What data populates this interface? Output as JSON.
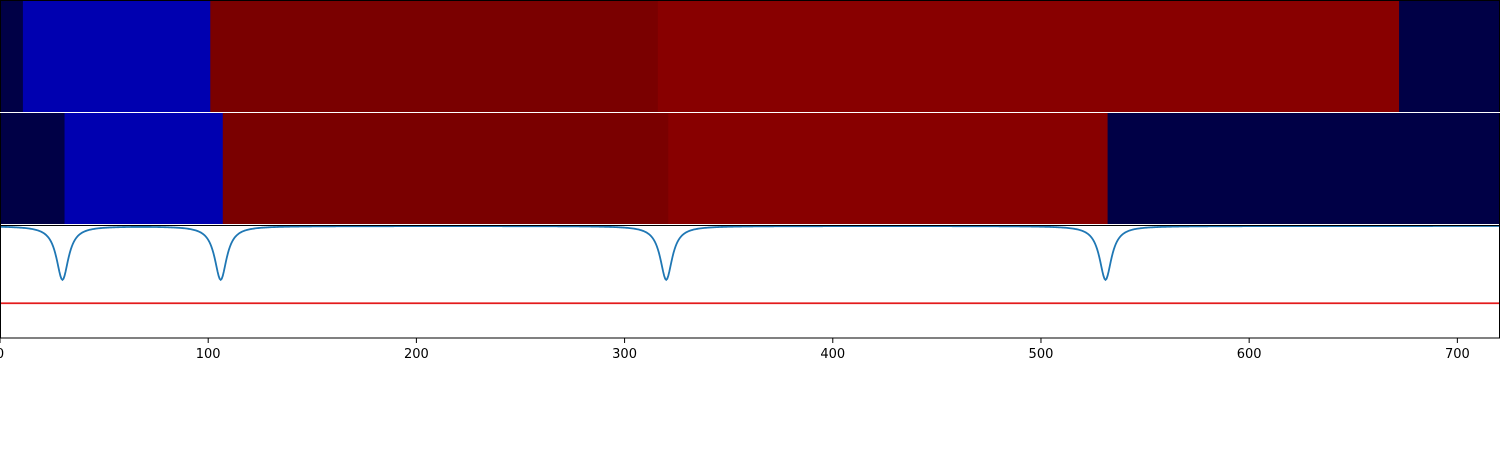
{
  "chart_data": {
    "type": "heatmap",
    "title": "",
    "xlabel": "",
    "ylabel": "",
    "xlim": [
      0,
      720
    ],
    "grid": false,
    "legend": "none",
    "xticks": [
      0,
      100,
      200,
      300,
      400,
      500,
      600,
      700
    ],
    "xtick_labels": [
      "0",
      "100",
      "200",
      "300",
      "400",
      "500",
      "600",
      "700"
    ],
    "rows": [
      {
        "segments": [
          {
            "start": 0,
            "end": 11,
            "color": "#000046"
          },
          {
            "start": 11,
            "end": 101,
            "color": "#0000b0"
          },
          {
            "start": 101,
            "end": 316,
            "color": "#7a0000"
          },
          {
            "start": 316,
            "end": 672,
            "color": "#880000"
          },
          {
            "start": 672,
            "end": 720,
            "color": "#000046"
          }
        ]
      },
      {
        "segments": [
          {
            "start": 0,
            "end": 31,
            "color": "#000046"
          },
          {
            "start": 31,
            "end": 107,
            "color": "#0000b0"
          },
          {
            "start": 107,
            "end": 321,
            "color": "#7a0000"
          },
          {
            "start": 321,
            "end": 532,
            "color": "#880000"
          },
          {
            "start": 532,
            "end": 720,
            "color": "#000046"
          }
        ]
      }
    ],
    "line_panel": {
      "ylim": [
        0,
        1
      ],
      "baseline": 1.0,
      "dip_centers": [
        30,
        106,
        320,
        531
      ],
      "dip_depth": 0.48,
      "dip_width": 3.5,
      "line_color": "#1f77b4",
      "threshold": 0.31,
      "threshold_color": "#e31a1c"
    }
  }
}
